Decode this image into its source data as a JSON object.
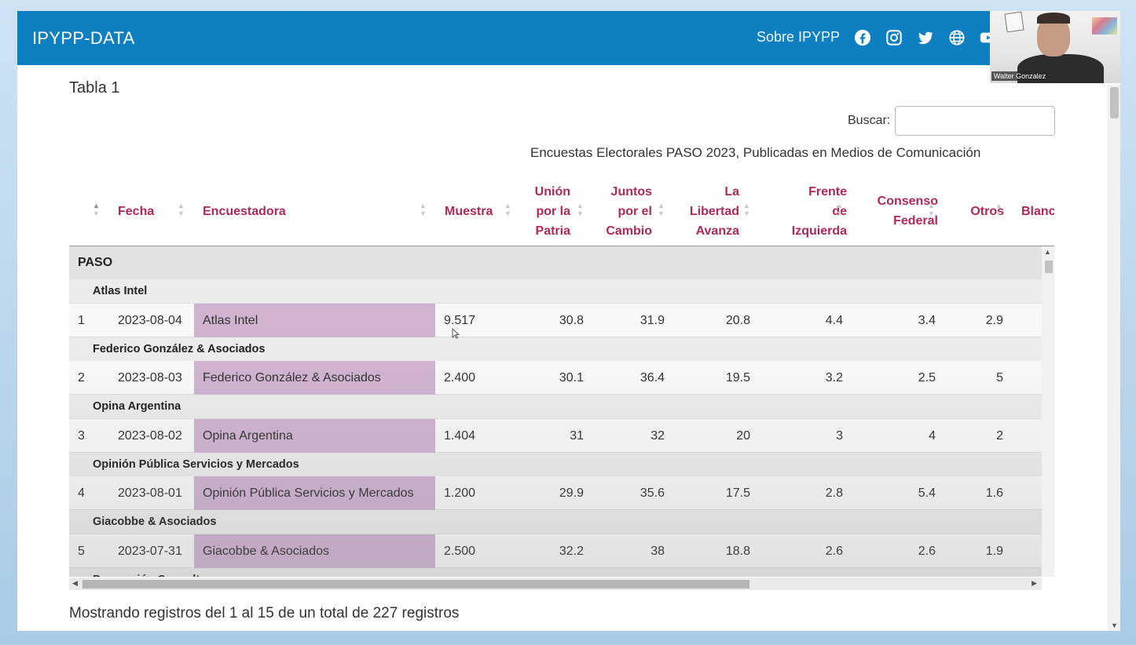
{
  "navbar": {
    "brand": "IPYPP-DATA",
    "link": "Sobre IPYPP",
    "icons": [
      "facebook-icon",
      "instagram-icon",
      "twitter-icon",
      "globe-icon",
      "youtube-icon"
    ],
    "color": "#0e7fc1"
  },
  "webcam": {
    "name": "Walter Gonzalez"
  },
  "page": {
    "heading": "Tabla 1",
    "search_label": "Buscar:",
    "search_value": "",
    "caption": "Encuestas Electorales PASO 2023, Publicadas en Medios de Comunicación",
    "info": "Mostrando registros del 1 al 15 de un total de 227 registros"
  },
  "table": {
    "header_color": "#b0285a",
    "highlight_color": "#cfb3cf",
    "columns": [
      "",
      "Fecha",
      "Encuestadora",
      "Muestra",
      "Unión\npor la\nPatria",
      "Juntos\npor el\nCambio",
      "La\nLibertad\nAvanza",
      "Frente\nde\nIzquierda",
      "Consenso\nFederal",
      "Otros",
      "Blanc"
    ],
    "group": "PASO",
    "rows": [
      {
        "group": "Atlas Intel",
        "n": "1",
        "fecha": "2023-08-04",
        "enc": "Atlas Intel",
        "muestra": "9.517",
        "uxp": "30.8",
        "jxc": "31.9",
        "lla": "20.8",
        "fit": "4.4",
        "cf": "3.4",
        "otros": "2.9"
      },
      {
        "group": "Federico González & Asociados",
        "n": "2",
        "fecha": "2023-08-03",
        "enc": "Federico González & Asociados",
        "muestra": "2.400",
        "uxp": "30.1",
        "jxc": "36.4",
        "lla": "19.5",
        "fit": "3.2",
        "cf": "2.5",
        "otros": "5"
      },
      {
        "group": "Opina Argentina",
        "n": "3",
        "fecha": "2023-08-02",
        "enc": "Opina Argentina",
        "muestra": "1.404",
        "uxp": "31",
        "jxc": "32",
        "lla": "20",
        "fit": "3",
        "cf": "4",
        "otros": "2"
      },
      {
        "group": "Opinión Pública Servicios y Mercados",
        "n": "4",
        "fecha": "2023-08-01",
        "enc": "Opinión Pública Servicios y Mercados",
        "muestra": "1.200",
        "uxp": "29.9",
        "jxc": "35.6",
        "lla": "17.5",
        "fit": "2.8",
        "cf": "5.4",
        "otros": "1.6"
      },
      {
        "group": "Giacobbe & Asociados",
        "n": "5",
        "fecha": "2023-07-31",
        "enc": "Giacobbe & Asociados",
        "muestra": "2.500",
        "uxp": "32.2",
        "jxc": "38",
        "lla": "18.8",
        "fit": "2.6",
        "cf": "2.6",
        "otros": "1.9"
      }
    ],
    "next_group": "Proyección Consultores"
  }
}
